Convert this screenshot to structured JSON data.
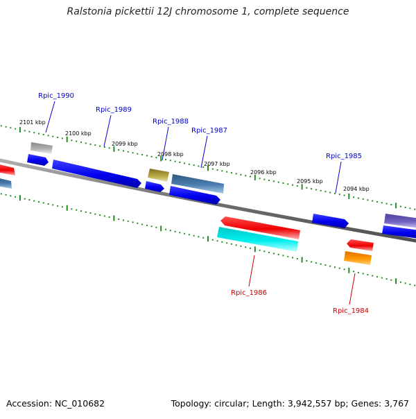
{
  "title": "Ralstonia pickettii 12J chromosome 1, complete sequence",
  "footer": {
    "accession": "Accession: NC_010682",
    "summary": "Topology: circular; Length: 3,942,557 bp; Genes: 3,767"
  },
  "ticks": [
    {
      "kbp": 2101,
      "label": "2101 kbp"
    },
    {
      "kbp": 2100,
      "label": "2100 kbp"
    },
    {
      "kbp": 2099,
      "label": "2099 kbp"
    },
    {
      "kbp": 2098,
      "label": "2098 kbp"
    },
    {
      "kbp": 2097,
      "label": "2097 kbp"
    },
    {
      "kbp": 2096,
      "label": "2096 kbp"
    },
    {
      "kbp": 2095,
      "label": "2095 kbp"
    },
    {
      "kbp": 2094,
      "label": "2094 kbp"
    }
  ],
  "gene_labels": [
    {
      "id": "rpic-1990",
      "text": "Rpic_1990",
      "strand": "forward",
      "color": "#0000cc"
    },
    {
      "id": "rpic-1989",
      "text": "Rpic_1989",
      "strand": "forward",
      "color": "#0000cc"
    },
    {
      "id": "rpic-1988",
      "text": "Rpic_1988",
      "strand": "forward",
      "color": "#0000cc"
    },
    {
      "id": "rpic-1987",
      "text": "Rpic_1987",
      "strand": "forward",
      "color": "#0000cc"
    },
    {
      "id": "rpic-1985",
      "text": "Rpic_1985",
      "strand": "forward",
      "color": "#0000cc"
    },
    {
      "id": "rpic-1986",
      "text": "Rpic_1986",
      "strand": "reverse",
      "color": "#cc0000"
    },
    {
      "id": "rpic-1984",
      "text": "Rpic_1984",
      "strand": "reverse",
      "color": "#cc0000"
    }
  ],
  "colors": {
    "backbone": "#808080",
    "tick": "#228b22",
    "gene_blue": "#0000ee",
    "gene_red": "#ee0000",
    "gene_cyan": "#00eeee",
    "gene_orange": "#ff9900",
    "gene_steel": "#4a7fb0",
    "gene_olive": "#b5a642",
    "gene_gray": "#b0b0b0",
    "gene_purple": "#7060c0"
  }
}
